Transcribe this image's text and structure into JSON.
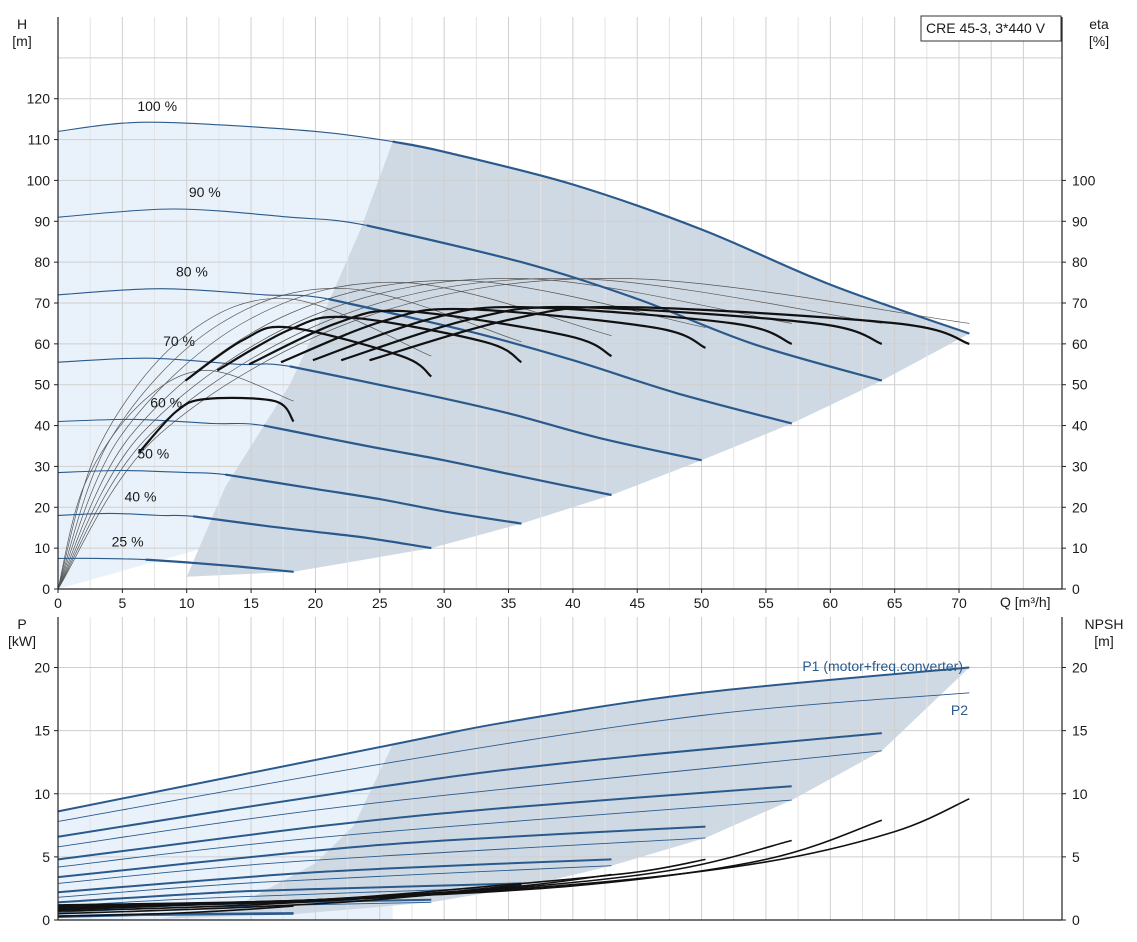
{
  "chart_data": [
    {
      "type": "line",
      "title": "",
      "model_label": "CRE 45-3, 3*440 V",
      "x_unit_label": "Q [m³/h]",
      "xlim": [
        0,
        78
      ],
      "x_ticks": [
        0,
        5,
        10,
        15,
        20,
        25,
        30,
        35,
        40,
        45,
        50,
        55,
        60,
        65,
        70
      ],
      "left_axis": {
        "label": "H",
        "unit": "[m]",
        "ylim": [
          0,
          140
        ],
        "ticks": [
          0,
          10,
          20,
          30,
          40,
          50,
          60,
          70,
          80,
          90,
          100,
          110,
          120
        ]
      },
      "right_axis": {
        "label": "eta",
        "unit": "[%]",
        "ylim": [
          0,
          140
        ],
        "ticks": [
          0,
          10,
          20,
          30,
          40,
          50,
          60,
          70,
          80,
          90,
          100
        ]
      },
      "grid": true,
      "operating_area_color": "#cfd9e4",
      "light_area_color": "#e9f2fb",
      "curve_color": "#2a5a8c",
      "eta_color": "#111111",
      "head_curves": [
        {
          "label": "100 %",
          "speed": 1.0,
          "points": [
            [
              0,
              112
            ],
            [
              5,
              114
            ],
            [
              10,
              114
            ],
            [
              20,
              112
            ],
            [
              26,
              109.5
            ],
            [
              30,
              107
            ],
            [
              40,
              99
            ],
            [
              50,
              88
            ],
            [
              60,
              74.5
            ],
            [
              70.8,
              62.5
            ]
          ]
        },
        {
          "label": "90 %",
          "speed": 0.9,
          "points": [
            [
              0,
              91
            ],
            [
              9,
              93
            ],
            [
              18,
              91
            ],
            [
              24,
              89
            ],
            [
              36,
              80
            ],
            [
              45,
              71
            ],
            [
              54,
              60
            ],
            [
              64,
              51
            ]
          ]
        },
        {
          "label": "80 %",
          "speed": 0.8,
          "points": [
            [
              0,
              72
            ],
            [
              8,
              73.5
            ],
            [
              16,
              72
            ],
            [
              21,
              71
            ],
            [
              32,
              63
            ],
            [
              40,
              56
            ],
            [
              48,
              48
            ],
            [
              57,
              40.5
            ]
          ]
        },
        {
          "label": "70 %",
          "speed": 0.7,
          "points": [
            [
              0,
              55.5
            ],
            [
              7,
              56.5
            ],
            [
              14,
              55
            ],
            [
              18,
              54.5
            ],
            [
              28,
              48
            ],
            [
              35,
              43
            ],
            [
              42,
              37
            ],
            [
              50,
              31.5
            ]
          ]
        },
        {
          "label": "60 %",
          "speed": 0.6,
          "points": [
            [
              0,
              41
            ],
            [
              6,
              41.5
            ],
            [
              12,
              40.5
            ],
            [
              16,
              40
            ],
            [
              24,
              35
            ],
            [
              30,
              31.5
            ],
            [
              36,
              27.5
            ],
            [
              43,
              23
            ]
          ]
        },
        {
          "label": "50 %",
          "speed": 0.5,
          "points": [
            [
              0,
              28.5
            ],
            [
              5,
              29
            ],
            [
              10,
              28.5
            ],
            [
              13,
              28
            ],
            [
              20,
              24.5
            ],
            [
              25,
              22
            ],
            [
              30,
              19
            ],
            [
              36,
              16
            ]
          ]
        },
        {
          "label": "40 %",
          "speed": 0.4,
          "points": [
            [
              0,
              18
            ],
            [
              4,
              18.5
            ],
            [
              8,
              18
            ],
            [
              10.5,
              17.8
            ],
            [
              16,
              15.5
            ],
            [
              20,
              14
            ],
            [
              24,
              12.5
            ],
            [
              29,
              10
            ]
          ]
        },
        {
          "label": "25 %",
          "speed": 0.25,
          "points": [
            [
              0,
              7.5
            ],
            [
              3,
              7.5
            ],
            [
              6.8,
              7.2
            ],
            [
              10,
              6.5
            ],
            [
              14,
              5.5
            ],
            [
              18.3,
              4.2
            ]
          ]
        }
      ],
      "eta_curves": [
        {
          "speed": 1.0,
          "peak_q": 44,
          "q_end": 70.8,
          "peak": 69,
          "end_value": 60
        },
        {
          "speed": 0.9,
          "peak_q": 40,
          "q_end": 64,
          "peak": 69,
          "end_value": 60
        },
        {
          "speed": 0.8,
          "peak_q": 36,
          "q_end": 57,
          "peak": 69,
          "end_value": 60
        },
        {
          "speed": 0.7,
          "peak_q": 31.5,
          "q_end": 50.3,
          "peak": 68.5,
          "end_value": 59
        },
        {
          "speed": 0.6,
          "peak_q": 27,
          "q_end": 43,
          "peak": 68,
          "end_value": 57
        },
        {
          "speed": 0.5,
          "peak_q": 22.5,
          "q_end": 36,
          "peak": 66.5,
          "end_value": 55.5
        },
        {
          "speed": 0.4,
          "peak_q": 18,
          "q_end": 29,
          "peak": 64,
          "end_value": 52
        },
        {
          "speed": 0.25,
          "peak_q": 11.5,
          "q_end": 18.3,
          "peak": 46.5,
          "end_value": 41
        }
      ]
    },
    {
      "type": "line",
      "title": "",
      "xlim": [
        0,
        78
      ],
      "x_ticks": [
        0,
        5,
        10,
        15,
        20,
        25,
        30,
        35,
        40,
        45,
        50,
        55,
        60,
        65,
        70
      ],
      "left_axis": {
        "label": "P",
        "unit": "[kW]",
        "ylim": [
          0,
          24
        ],
        "ticks": [
          0,
          5,
          10,
          15,
          20
        ]
      },
      "right_axis": {
        "label": "NPSH",
        "unit": "[m]",
        "ylim": [
          0,
          24
        ],
        "ticks": [
          0,
          5,
          10,
          15,
          20
        ]
      },
      "grid": true,
      "series_labels": {
        "p1": "P1 (motor+freq.converter)",
        "p2": "P2"
      },
      "power_curves": [
        {
          "speed": 1.0,
          "p1": [
            [
              0,
              8.6
            ],
            [
              26,
              13.9
            ],
            [
              35,
              15.7
            ],
            [
              50,
              18.0
            ],
            [
              70.8,
              20.0
            ]
          ],
          "p2": [
            [
              0,
              7.8
            ],
            [
              26,
              12.5
            ],
            [
              50,
              16.2
            ],
            [
              70.8,
              18.0
            ]
          ]
        },
        {
          "speed": 0.9,
          "p1": [
            [
              0,
              6.6
            ],
            [
              24,
              10.4
            ],
            [
              40,
              12.5
            ],
            [
              64,
              14.8
            ]
          ],
          "p2": [
            [
              0,
              5.8
            ],
            [
              24,
              9.2
            ],
            [
              64,
              13.4
            ]
          ]
        },
        {
          "speed": 0.8,
          "p1": [
            [
              0,
              4.8
            ],
            [
              21,
              7.5
            ],
            [
              35,
              8.9
            ],
            [
              57,
              10.6
            ]
          ],
          "p2": [
            [
              0,
              4.2
            ],
            [
              21,
              6.6
            ],
            [
              57,
              9.5
            ]
          ]
        },
        {
          "speed": 0.7,
          "p1": [
            [
              0,
              3.4
            ],
            [
              18,
              5.3
            ],
            [
              30,
              6.3
            ],
            [
              50.3,
              7.4
            ]
          ],
          "p2": [
            [
              0,
              2.9
            ],
            [
              18,
              4.6
            ],
            [
              50.3,
              6.5
            ]
          ]
        },
        {
          "speed": 0.6,
          "p1": [
            [
              0,
              2.2
            ],
            [
              16,
              3.5
            ],
            [
              26,
              4.1
            ],
            [
              43,
              4.8
            ]
          ],
          "p2": [
            [
              0,
              1.8
            ],
            [
              16,
              3.0
            ],
            [
              43,
              4.3
            ]
          ]
        },
        {
          "speed": 0.5,
          "p1": [
            [
              0,
              1.4
            ],
            [
              13,
              2.2
            ],
            [
              22,
              2.5
            ],
            [
              36,
              2.9
            ]
          ],
          "p2": [
            [
              0,
              1.1
            ],
            [
              13,
              1.8
            ],
            [
              36,
              2.6
            ]
          ]
        },
        {
          "speed": 0.4,
          "p1": [
            [
              0,
              0.8
            ],
            [
              10.5,
              1.2
            ],
            [
              18,
              1.4
            ],
            [
              29,
              1.6
            ]
          ],
          "p2": [
            [
              0,
              0.6
            ],
            [
              10.5,
              1.0
            ],
            [
              29,
              1.4
            ]
          ]
        },
        {
          "speed": 0.25,
          "p1": [
            [
              0,
              0.3
            ],
            [
              6.8,
              0.45
            ],
            [
              12,
              0.5
            ],
            [
              18.3,
              0.55
            ]
          ],
          "p2": [
            [
              0,
              0.2
            ],
            [
              6.8,
              0.35
            ],
            [
              18.3,
              0.45
            ]
          ]
        }
      ],
      "npsh_curves": [
        {
          "speed": 1.0,
          "points": [
            [
              0,
              1.2
            ],
            [
              20,
              1.6
            ],
            [
              40,
              2.8
            ],
            [
              55,
              4.6
            ],
            [
              65,
              7.0
            ],
            [
              70.8,
              9.6
            ]
          ]
        },
        {
          "speed": 0.9,
          "points": [
            [
              0,
              1.1
            ],
            [
              20,
              1.6
            ],
            [
              40,
              2.7
            ],
            [
              55,
              4.8
            ],
            [
              64,
              7.9
            ]
          ]
        },
        {
          "speed": 0.8,
          "points": [
            [
              0,
              1.0
            ],
            [
              20,
              1.5
            ],
            [
              35,
              2.5
            ],
            [
              48,
              4.0
            ],
            [
              57,
              6.3
            ]
          ]
        },
        {
          "speed": 0.7,
          "points": [
            [
              0,
              0.9
            ],
            [
              20,
              1.6
            ],
            [
              35,
              2.8
            ],
            [
              45,
              3.8
            ],
            [
              50.3,
              4.8
            ]
          ]
        },
        {
          "speed": 0.6,
          "points": [
            [
              0,
              0.8
            ],
            [
              20,
              1.6
            ],
            [
              35,
              2.6
            ],
            [
              43,
              3.6
            ]
          ]
        },
        {
          "speed": 0.5,
          "points": [
            [
              0,
              0.7
            ],
            [
              15,
              1.2
            ],
            [
              28,
              2.0
            ],
            [
              36,
              2.8
            ]
          ]
        },
        {
          "speed": 0.4,
          "points": [
            [
              0,
              0.5
            ],
            [
              12,
              0.9
            ],
            [
              22,
              1.4
            ],
            [
              29,
              2.0
            ]
          ]
        },
        {
          "speed": 0.25,
          "points": [
            [
              0,
              0.3
            ],
            [
              8,
              0.5
            ],
            [
              14,
              0.8
            ],
            [
              18.3,
              1.1
            ]
          ]
        }
      ]
    }
  ]
}
